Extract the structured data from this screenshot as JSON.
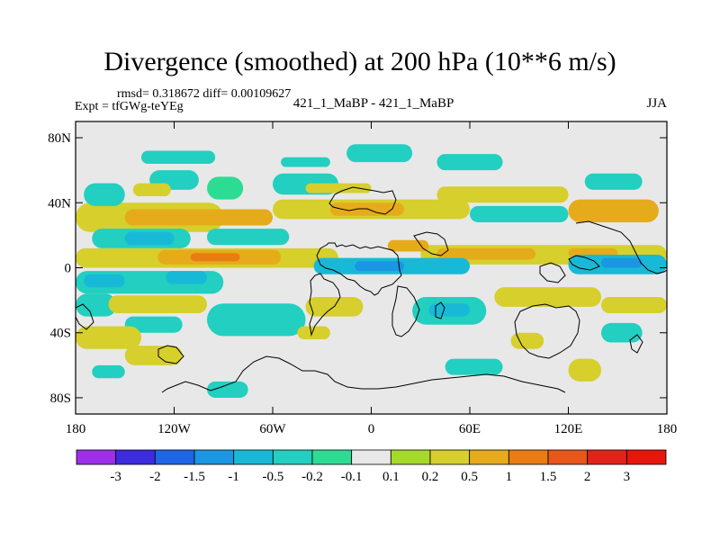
{
  "header": {
    "title": "Divergence (smoothed) at 200 hPa (10**6 m/s)",
    "stats": "rmsd= 0.318672 diff= 0.00109627",
    "experiment": "Expt = tfGWg-teYEg",
    "comparison": "421_1_MaBP - 421_1_MaBP",
    "season": "JJA"
  },
  "chart_data": {
    "type": "heatmap",
    "title": "Divergence (smoothed) at 200 hPa (10**6 m/s)",
    "xlabel": "",
    "ylabel": "",
    "x_range": [
      -180,
      180
    ],
    "y_range": [
      -90,
      90
    ],
    "x_ticks": [
      {
        "value": -180,
        "label": "180"
      },
      {
        "value": -120,
        "label": "120W"
      },
      {
        "value": -60,
        "label": "60W"
      },
      {
        "value": 0,
        "label": "0"
      },
      {
        "value": 60,
        "label": "60E"
      },
      {
        "value": 120,
        "label": "120E"
      },
      {
        "value": 180,
        "label": "180"
      }
    ],
    "y_ticks": [
      {
        "value": 80,
        "label": "80N"
      },
      {
        "value": 40,
        "label": "40N"
      },
      {
        "value": 0,
        "label": "0"
      },
      {
        "value": -40,
        "label": "40S"
      },
      {
        "value": -80,
        "label": "80S"
      }
    ],
    "colorbar": {
      "labels": [
        "-3",
        "-2",
        "-1.5",
        "-1",
        "-0.5",
        "-0.2",
        "-0.1",
        "0.1",
        "0.2",
        "0.5",
        "1",
        "1.5",
        "2",
        "3"
      ],
      "colors": [
        "#9d2fe8",
        "#3d2be0",
        "#1e66e6",
        "#1b96e2",
        "#18b9d7",
        "#22cfc0",
        "#2ddc93",
        "#e8e8e8",
        "#a5d92a",
        "#d6cf2c",
        "#e6ab1a",
        "#e97c12",
        "#e8561a",
        "#e3231a",
        "#e8150c"
      ]
    },
    "regions": [
      {
        "value": 0.3,
        "lon0": -180,
        "lon1": -90,
        "lat0": 22,
        "lat1": 40
      },
      {
        "value": 0.7,
        "lon0": -150,
        "lon1": -60,
        "lat0": 26,
        "lat1": 36
      },
      {
        "value": 0.3,
        "lon0": -60,
        "lon1": 60,
        "lat0": 30,
        "lat1": 42
      },
      {
        "value": 0.7,
        "lon0": -25,
        "lon1": 20,
        "lat0": 32,
        "lat1": 40
      },
      {
        "value": -0.3,
        "lon0": -175,
        "lon1": -150,
        "lat0": 38,
        "lat1": 52
      },
      {
        "value": -0.3,
        "lon0": -135,
        "lon1": -105,
        "lat0": 48,
        "lat1": 60
      },
      {
        "value": -0.15,
        "lon0": -100,
        "lon1": -78,
        "lat0": 42,
        "lat1": 56
      },
      {
        "value": -0.3,
        "lon0": -60,
        "lon1": -20,
        "lat0": 45,
        "lat1": 58
      },
      {
        "value": 0.3,
        "lon0": -145,
        "lon1": -122,
        "lat0": 44,
        "lat1": 52
      },
      {
        "value": 0.3,
        "lon0": -40,
        "lon1": 0,
        "lat0": 46,
        "lat1": 52
      },
      {
        "value": -0.3,
        "lon0": -140,
        "lon1": -95,
        "lat0": 64,
        "lat1": 72
      },
      {
        "value": -0.3,
        "lon0": -55,
        "lon1": -25,
        "lat0": 62,
        "lat1": 68
      },
      {
        "value": -0.3,
        "lon0": -15,
        "lon1": 25,
        "lat0": 65,
        "lat1": 76
      },
      {
        "value": -0.3,
        "lon0": 40,
        "lon1": 80,
        "lat0": 60,
        "lat1": 70
      },
      {
        "value": 0.3,
        "lon0": 40,
        "lon1": 120,
        "lat0": 40,
        "lat1": 50
      },
      {
        "value": -0.3,
        "lon0": 60,
        "lon1": 120,
        "lat0": 28,
        "lat1": 38
      },
      {
        "value": 0.7,
        "lon0": 120,
        "lon1": 175,
        "lat0": 28,
        "lat1": 42
      },
      {
        "value": -0.3,
        "lon0": 130,
        "lon1": 165,
        "lat0": 48,
        "lat1": 58
      },
      {
        "value": -0.3,
        "lon0": -170,
        "lon1": -110,
        "lat0": 12,
        "lat1": 24
      },
      {
        "value": -0.7,
        "lon0": -150,
        "lon1": -120,
        "lat0": 14,
        "lat1": 22
      },
      {
        "value": -0.3,
        "lon0": -100,
        "lon1": -50,
        "lat0": 14,
        "lat1": 24
      },
      {
        "value": 0.3,
        "lon0": -180,
        "lon1": -20,
        "lat0": 0,
        "lat1": 12
      },
      {
        "value": 0.7,
        "lon0": -130,
        "lon1": -55,
        "lat0": 2,
        "lat1": 11
      },
      {
        "value": 1.2,
        "lon0": -110,
        "lon1": -80,
        "lat0": 4,
        "lat1": 9
      },
      {
        "value": 0.3,
        "lon0": 30,
        "lon1": 180,
        "lat0": 2,
        "lat1": 14
      },
      {
        "value": 0.7,
        "lon0": 40,
        "lon1": 100,
        "lat0": 5,
        "lat1": 12
      },
      {
        "value": 0.7,
        "lon0": 120,
        "lon1": 150,
        "lat0": 6,
        "lat1": 12
      },
      {
        "value": 0.7,
        "lon0": 10,
        "lon1": 35,
        "lat0": 10,
        "lat1": 17
      },
      {
        "value": -0.3,
        "lon0": -180,
        "lon1": -90,
        "lat0": -16,
        "lat1": -2
      },
      {
        "value": -0.7,
        "lon0": -175,
        "lon1": -150,
        "lat0": -12,
        "lat1": -4
      },
      {
        "value": -0.7,
        "lon0": -125,
        "lon1": -100,
        "lat0": -10,
        "lat1": -2
      },
      {
        "value": -0.7,
        "lon0": -35,
        "lon1": 60,
        "lat0": -4,
        "lat1": 6
      },
      {
        "value": -1.2,
        "lon0": -10,
        "lon1": 20,
        "lat0": -2,
        "lat1": 4
      },
      {
        "value": -0.7,
        "lon0": 120,
        "lon1": 180,
        "lat0": -4,
        "lat1": 8
      },
      {
        "value": -1.2,
        "lon0": 140,
        "lon1": 165,
        "lat0": 0,
        "lat1": 6
      },
      {
        "value": -0.3,
        "lon0": -180,
        "lon1": -155,
        "lat0": -30,
        "lat1": -16
      },
      {
        "value": 0.3,
        "lon0": -160,
        "lon1": -100,
        "lat0": -28,
        "lat1": -17
      },
      {
        "value": -0.3,
        "lon0": -150,
        "lon1": -115,
        "lat0": -40,
        "lat1": -30
      },
      {
        "value": -0.3,
        "lon0": -100,
        "lon1": -40,
        "lat0": -42,
        "lat1": -22
      },
      {
        "value": 0.3,
        "lon0": -40,
        "lon1": -5,
        "lat0": -30,
        "lat1": -18
      },
      {
        "value": -0.3,
        "lon0": 25,
        "lon1": 70,
        "lat0": -35,
        "lat1": -18
      },
      {
        "value": -0.7,
        "lon0": 35,
        "lon1": 60,
        "lat0": -30,
        "lat1": -22
      },
      {
        "value": 0.3,
        "lon0": 75,
        "lon1": 140,
        "lat0": -24,
        "lat1": -12
      },
      {
        "value": 0.3,
        "lon0": 140,
        "lon1": 180,
        "lat0": -28,
        "lat1": -18
      },
      {
        "value": 0.3,
        "lon0": -180,
        "lon1": -140,
        "lat0": -50,
        "lat1": -36
      },
      {
        "value": 0.3,
        "lon0": -150,
        "lon1": -115,
        "lat0": -60,
        "lat1": -48
      },
      {
        "value": 0.3,
        "lon0": -45,
        "lon1": -25,
        "lat0": -44,
        "lat1": -36
      },
      {
        "value": 0.3,
        "lon0": 85,
        "lon1": 105,
        "lat0": -50,
        "lat1": -40
      },
      {
        "value": -0.3,
        "lon0": 45,
        "lon1": 80,
        "lat0": -66,
        "lat1": -56
      },
      {
        "value": 0.3,
        "lon0": 120,
        "lon1": 140,
        "lat0": -70,
        "lat1": -56
      },
      {
        "value": -0.3,
        "lon0": 140,
        "lon1": 165,
        "lat0": -46,
        "lat1": -34
      },
      {
        "value": -0.3,
        "lon0": -170,
        "lon1": -150,
        "lat0": -68,
        "lat1": -60
      },
      {
        "value": -0.3,
        "lon0": -100,
        "lon1": -75,
        "lat0": -80,
        "lat1": -70
      }
    ]
  }
}
